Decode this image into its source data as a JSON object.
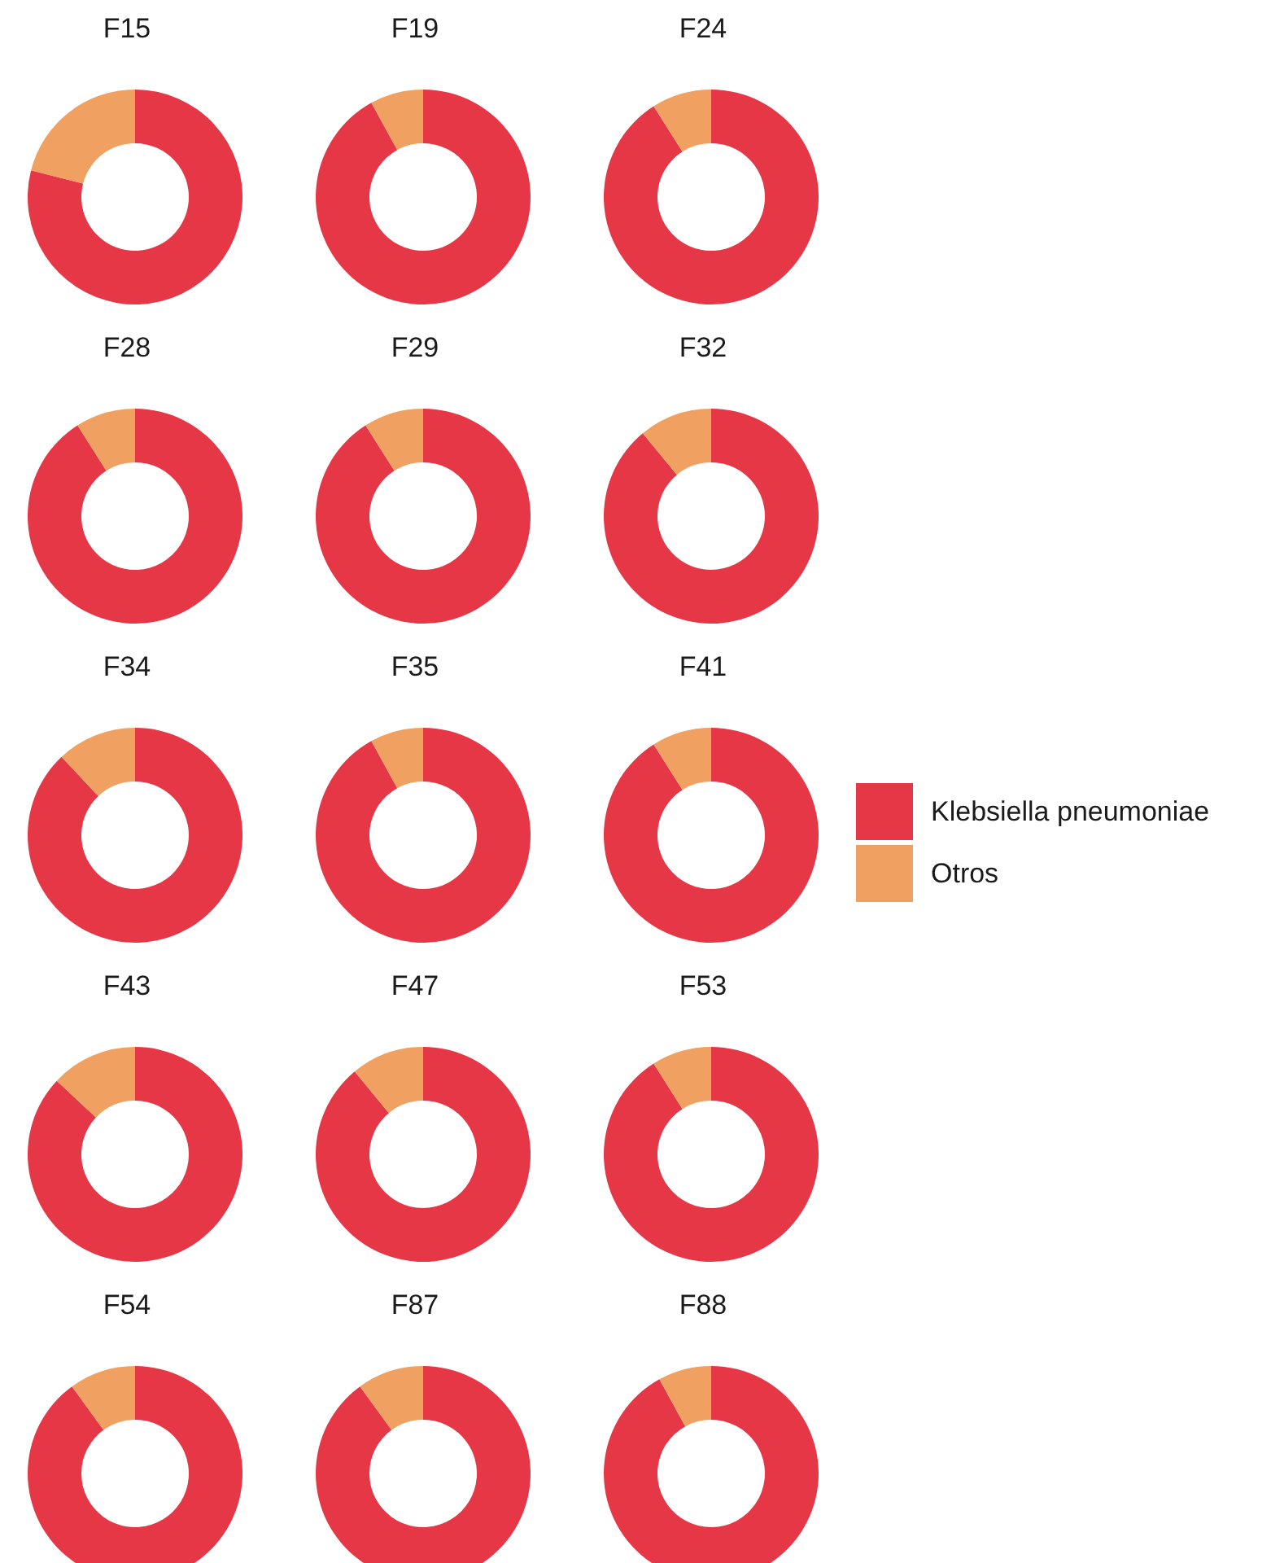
{
  "chart_data": [
    {
      "type": "donut",
      "title": "F15",
      "categories": [
        null,
        null
      ],
      "values": [
        79,
        21
      ],
      "colors": [
        "#e63747",
        "#f0a060"
      ]
    },
    {
      "type": "donut",
      "title": "F19",
      "categories": [
        null,
        null
      ],
      "values": [
        92,
        8
      ],
      "colors": [
        "#e63747",
        "#f0a060"
      ]
    },
    {
      "type": "donut",
      "title": "F24",
      "categories": [
        null,
        null
      ],
      "values": [
        91,
        9
      ],
      "colors": [
        "#e63747",
        "#f0a060"
      ]
    },
    {
      "type": "donut",
      "title": "F28",
      "categories": [
        null,
        null
      ],
      "values": [
        91,
        9
      ],
      "colors": [
        "#e63747",
        "#f0a060"
      ]
    },
    {
      "type": "donut",
      "title": "F29",
      "categories": [
        null,
        null
      ],
      "values": [
        91,
        9
      ],
      "colors": [
        "#e63747",
        "#f0a060"
      ]
    },
    {
      "type": "donut",
      "title": "F32",
      "categories": [
        null,
        null
      ],
      "values": [
        89,
        11
      ],
      "colors": [
        "#e63747",
        "#f0a060"
      ]
    },
    {
      "type": "donut",
      "title": "F34",
      "categories": [
        null,
        null
      ],
      "values": [
        88,
        12
      ],
      "colors": [
        "#e63747",
        "#f0a060"
      ]
    },
    {
      "type": "donut",
      "title": "F35",
      "categories": [
        null,
        null
      ],
      "values": [
        92,
        8
      ],
      "colors": [
        "#e63747",
        "#f0a060"
      ]
    },
    {
      "type": "donut",
      "title": "F41",
      "categories": [
        "Klebsiella pneumoniae",
        "Otros"
      ],
      "values": [
        91,
        9
      ],
      "colors": [
        "#e63747",
        "#f0a060"
      ],
      "legend": "right"
    },
    {
      "type": "donut",
      "title": "F43",
      "categories": [
        null,
        null
      ],
      "values": [
        87,
        13
      ],
      "colors": [
        "#e63747",
        "#f0a060"
      ]
    },
    {
      "type": "donut",
      "title": "F47",
      "categories": [
        null,
        null
      ],
      "values": [
        89,
        11
      ],
      "colors": [
        "#e63747",
        "#f0a060"
      ]
    },
    {
      "type": "donut",
      "title": "F53",
      "categories": [
        null,
        null
      ],
      "values": [
        91,
        9
      ],
      "colors": [
        "#e63747",
        "#f0a060"
      ]
    },
    {
      "type": "donut",
      "title": "F54",
      "categories": [
        null,
        null
      ],
      "values": [
        90,
        10
      ],
      "colors": [
        "#e63747",
        "#f0a060"
      ]
    },
    {
      "type": "donut",
      "title": "F87",
      "categories": [
        null,
        null
      ],
      "values": [
        90,
        10
      ],
      "colors": [
        "#e63747",
        "#f0a060"
      ]
    },
    {
      "type": "donut",
      "title": "F88",
      "categories": [
        null,
        null
      ],
      "values": [
        92,
        8
      ],
      "colors": [
        "#e63747",
        "#f0a060"
      ]
    }
  ]
}
